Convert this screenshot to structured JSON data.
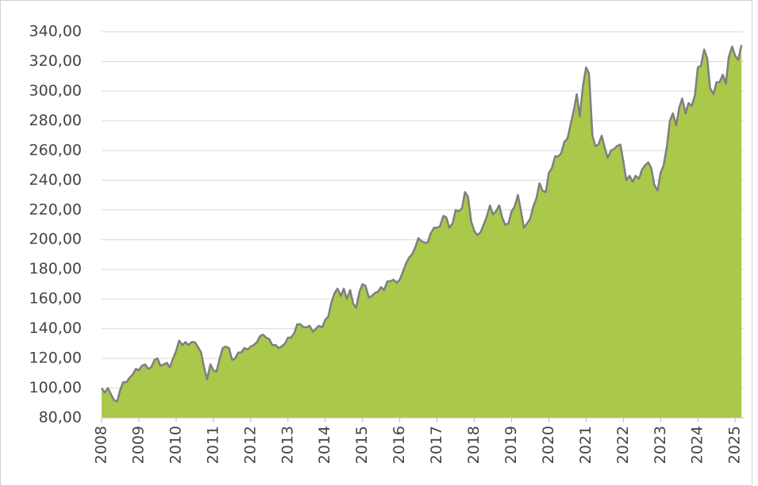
{
  "chart_data": {
    "type": "area",
    "x": [
      2008,
      2008.08,
      2008.17,
      2008.25,
      2008.33,
      2008.42,
      2008.5,
      2008.58,
      2008.67,
      2008.75,
      2008.83,
      2008.92,
      2009,
      2009.08,
      2009.17,
      2009.25,
      2009.33,
      2009.42,
      2009.5,
      2009.58,
      2009.67,
      2009.75,
      2009.83,
      2009.92,
      2010,
      2010.08,
      2010.17,
      2010.25,
      2010.33,
      2010.42,
      2010.5,
      2010.58,
      2010.67,
      2010.75,
      2010.83,
      2010.92,
      2011,
      2011.08,
      2011.17,
      2011.25,
      2011.33,
      2011.42,
      2011.5,
      2011.58,
      2011.67,
      2011.75,
      2011.83,
      2011.92,
      2012,
      2012.08,
      2012.17,
      2012.25,
      2012.33,
      2012.42,
      2012.5,
      2012.58,
      2012.67,
      2012.75,
      2012.83,
      2012.92,
      2013,
      2013.08,
      2013.17,
      2013.25,
      2013.33,
      2013.42,
      2013.5,
      2013.58,
      2013.67,
      2013.75,
      2013.83,
      2013.92,
      2014,
      2014.08,
      2014.17,
      2014.25,
      2014.33,
      2014.42,
      2014.5,
      2014.58,
      2014.67,
      2014.75,
      2014.83,
      2014.92,
      2015,
      2015.08,
      2015.17,
      2015.25,
      2015.33,
      2015.42,
      2015.5,
      2015.58,
      2015.67,
      2015.75,
      2015.83,
      2015.92,
      2016,
      2016.08,
      2016.17,
      2016.25,
      2016.33,
      2016.42,
      2016.5,
      2016.58,
      2016.67,
      2016.75,
      2016.83,
      2016.92,
      2017,
      2017.08,
      2017.17,
      2017.25,
      2017.33,
      2017.42,
      2017.5,
      2017.58,
      2017.67,
      2017.75,
      2017.83,
      2017.92,
      2018,
      2018.08,
      2018.17,
      2018.25,
      2018.33,
      2018.42,
      2018.5,
      2018.58,
      2018.67,
      2018.75,
      2018.83,
      2018.92,
      2019,
      2019.08,
      2019.17,
      2019.25,
      2019.33,
      2019.42,
      2019.5,
      2019.58,
      2019.67,
      2019.75,
      2019.83,
      2019.92,
      2020,
      2020.08,
      2020.17,
      2020.25,
      2020.33,
      2020.42,
      2020.5,
      2020.58,
      2020.67,
      2020.75,
      2020.83,
      2020.92,
      2021,
      2021.08,
      2021.17,
      2021.25,
      2021.33,
      2021.42,
      2021.5,
      2021.58,
      2021.67,
      2021.75,
      2021.83,
      2021.92,
      2022,
      2022.08,
      2022.17,
      2022.25,
      2022.33,
      2022.42,
      2022.5,
      2022.58,
      2022.67,
      2022.75,
      2022.83,
      2022.92,
      2023,
      2023.08,
      2023.17,
      2023.25,
      2023.33,
      2023.42,
      2023.5,
      2023.58,
      2023.67,
      2023.75,
      2023.83,
      2023.92,
      2024,
      2024.08,
      2024.17,
      2024.25,
      2024.33,
      2024.42,
      2024.5,
      2024.58,
      2024.67,
      2024.75,
      2024.83,
      2024.92,
      2025,
      2025.08,
      2025.17
    ],
    "series": [
      {
        "color": "#aac84a",
        "line_color": "#7f7f7f",
        "values": [
          100,
          97,
          100,
          96,
          92,
          91,
          99,
          104,
          104,
          107,
          109,
          113,
          112,
          115,
          116,
          113,
          114,
          119,
          120,
          115,
          116,
          117,
          114,
          120,
          125,
          132,
          129,
          131,
          129,
          131,
          131,
          128,
          124,
          114,
          106,
          116,
          112,
          111,
          120,
          127,
          128,
          127,
          119,
          120,
          124,
          124,
          127,
          126,
          128,
          129,
          131,
          135,
          136,
          134,
          133,
          129,
          129,
          127,
          128,
          130,
          134,
          134,
          137,
          143,
          143,
          141,
          141,
          142,
          138,
          140,
          142,
          141,
          146,
          148,
          158,
          164,
          167,
          162,
          167,
          160,
          166,
          157,
          154,
          165,
          170,
          169,
          161,
          162,
          164,
          165,
          168,
          166,
          172,
          172,
          173,
          171,
          173,
          178,
          184,
          188,
          190,
          195,
          201,
          199,
          198,
          198,
          204,
          208,
          208,
          209,
          216,
          215,
          208,
          211,
          220,
          219,
          221,
          232,
          229,
          212,
          206,
          203,
          205,
          210,
          215,
          223,
          217,
          219,
          223,
          215,
          210,
          211,
          219,
          222,
          230,
          220,
          208,
          211,
          214,
          222,
          228,
          238,
          233,
          232,
          245,
          248,
          256,
          256,
          258,
          266,
          268,
          277,
          287,
          298,
          283,
          304,
          316,
          312,
          270,
          263,
          264,
          270,
          262,
          255,
          260,
          261,
          263,
          264,
          253,
          240,
          243,
          239,
          243,
          241,
          247,
          250,
          252,
          248,
          237,
          233,
          245,
          250,
          263,
          280,
          285,
          277,
          289,
          295,
          285,
          292,
          290,
          297,
          316,
          317,
          328,
          322,
          302,
          298,
          306,
          306,
          311,
          305,
          323,
          330,
          324,
          321,
          331
        ]
      }
    ],
    "xlim": [
      2008,
      2025.23
    ],
    "xticks": [
      2008,
      2009,
      2010,
      2011,
      2012,
      2013,
      2014,
      2015,
      2016,
      2017,
      2018,
      2019,
      2020,
      2021,
      2022,
      2023,
      2024,
      2025
    ],
    "ylim": [
      80,
      340
    ],
    "yticks": [
      {
        "value": 80,
        "label": "80,00"
      },
      {
        "value": 100,
        "label": "100,00"
      },
      {
        "value": 120,
        "label": "120,00"
      },
      {
        "value": 140,
        "label": "140,00"
      },
      {
        "value": 160,
        "label": "160,00"
      },
      {
        "value": 180,
        "label": "180,00"
      },
      {
        "value": 200,
        "label": "200,00"
      },
      {
        "value": 220,
        "label": "220,00"
      },
      {
        "value": 240,
        "label": "240,00"
      },
      {
        "value": 260,
        "label": "260,00"
      },
      {
        "value": 280,
        "label": "280,00"
      },
      {
        "value": 300,
        "label": "300,00"
      },
      {
        "value": 320,
        "label": "320,00"
      },
      {
        "value": 340,
        "label": "340,00"
      }
    ],
    "grid": true
  }
}
